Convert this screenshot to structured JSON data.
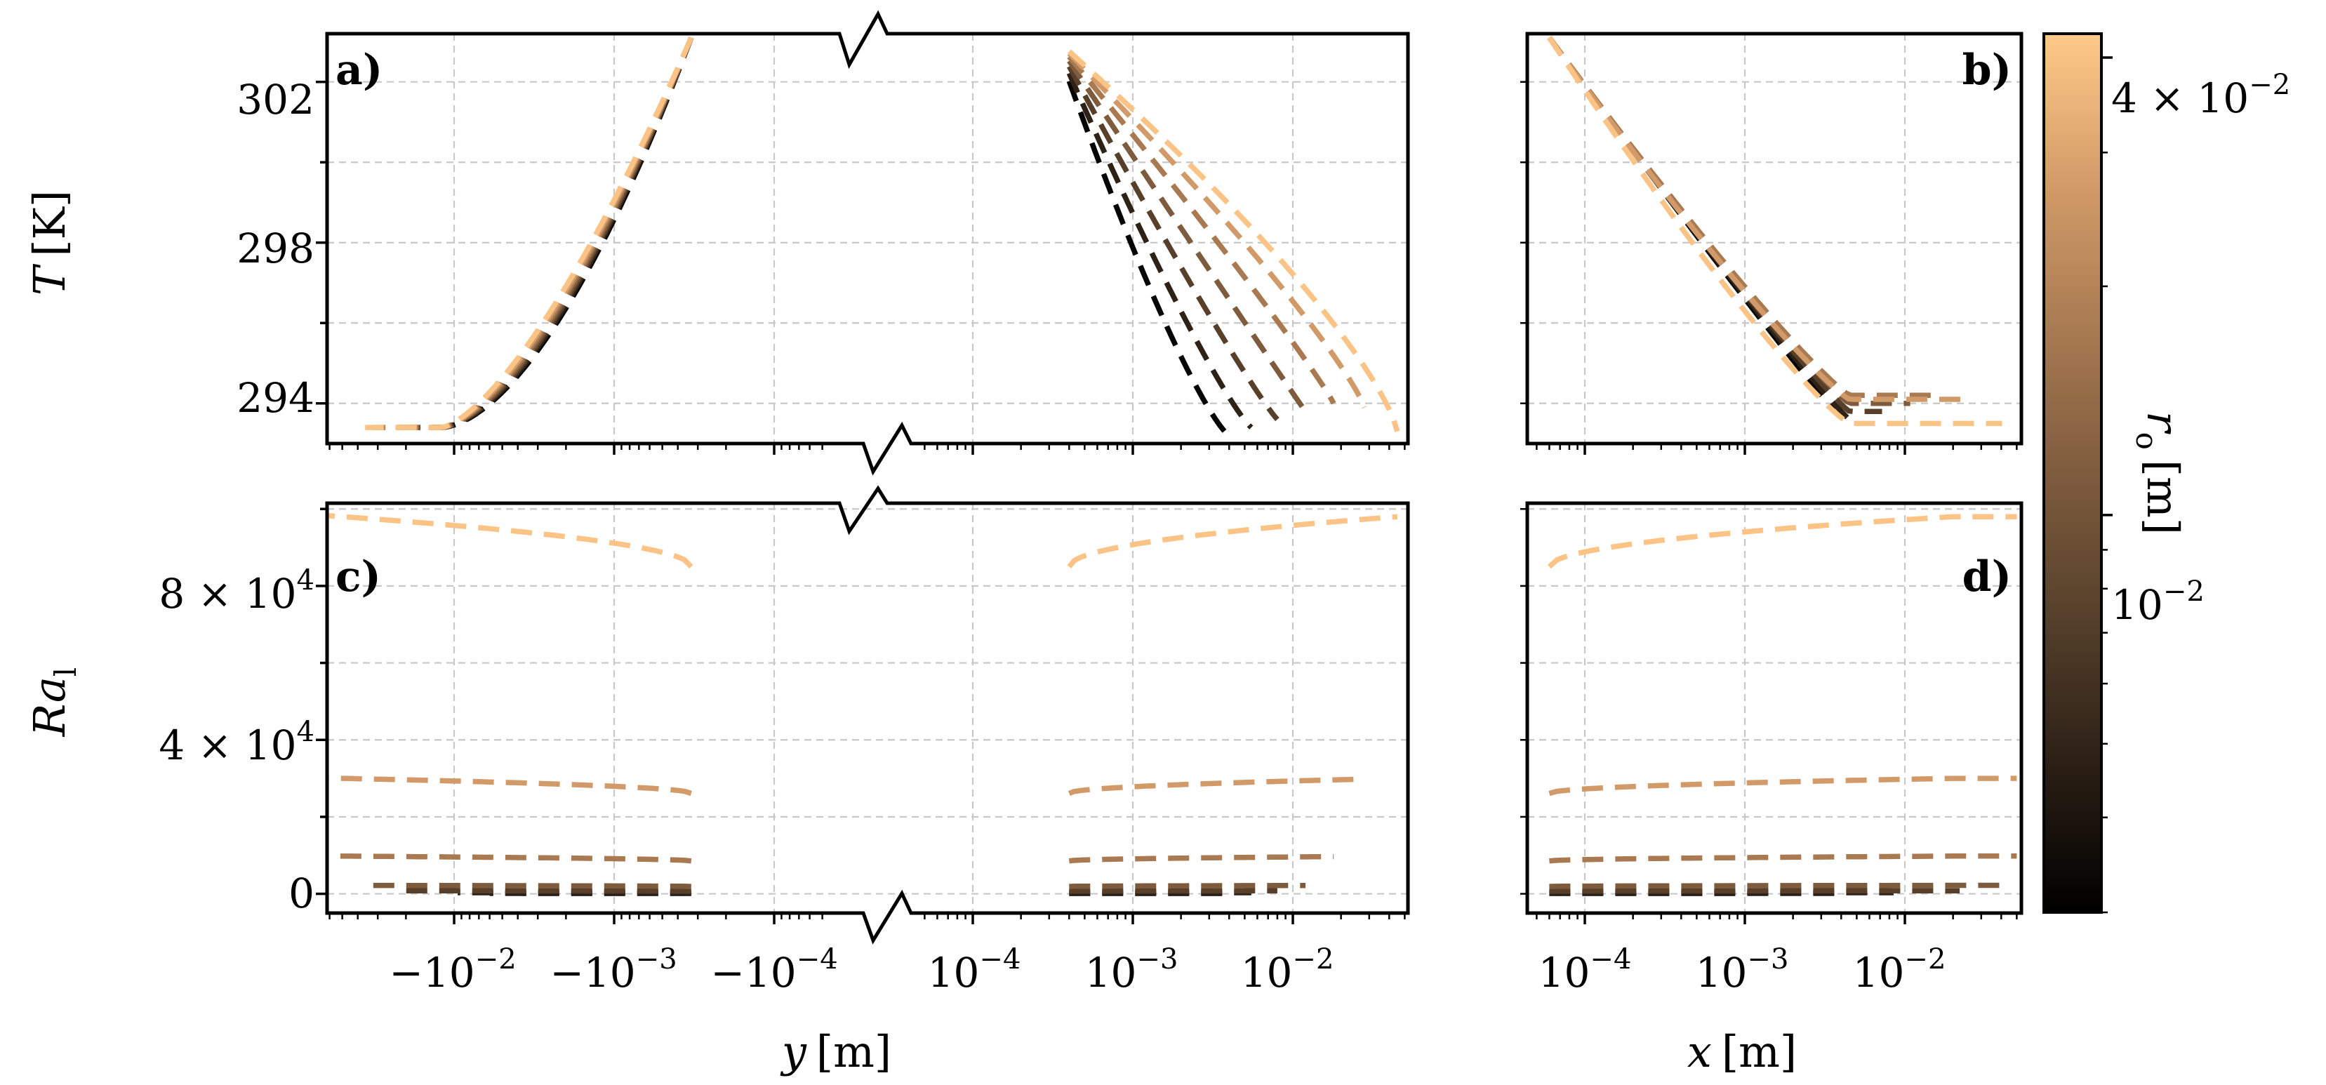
{
  "chart_data": [
    {
      "panel": "a)",
      "type": "line",
      "ylabel": "T [K]",
      "ylabel_sym": "T",
      "ylabel_unit": "[K]",
      "yticks": [
        "294",
        "298",
        "302"
      ],
      "yrange": [
        293.0,
        303.2
      ],
      "xscale": "symlog (broken axis)",
      "note": "Temperature profiles across y for varying outer radius r_o"
    },
    {
      "panel": "b)",
      "type": "line",
      "xscale": "log",
      "note": "Temperature profiles along x for varying outer radius r_o"
    },
    {
      "panel": "c)",
      "type": "line",
      "ylabel": "Ra_l",
      "ylabel_sym": "Ra",
      "ylabel_sub": "l",
      "yticks": [
        {
          "m": "0",
          "e": ""
        },
        {
          "m": "4 × 10",
          "e": "4"
        },
        {
          "m": "8 × 10",
          "e": "4"
        }
      ],
      "yrange": [
        -5000,
        101500
      ],
      "xlabel": "y [m]",
      "xlabel_sym": "y",
      "xlabel_unit": "[m]",
      "xticks_neg": [
        {
          "m": "−10",
          "e": "−2"
        },
        {
          "m": "−10",
          "e": "−3"
        },
        {
          "m": "−10",
          "e": "−4"
        }
      ],
      "xticks_pos": [
        {
          "m": "10",
          "e": "−4"
        },
        {
          "m": "10",
          "e": "−3"
        },
        {
          "m": "10",
          "e": "−2"
        }
      ],
      "note": "Local Rayleigh number along y for varying r_o"
    },
    {
      "panel": "d)",
      "type": "line",
      "xlabel": "x [m]",
      "xlabel_sym": "x",
      "xlabel_unit": "[m]",
      "xticks": [
        {
          "m": "10",
          "e": "−4"
        },
        {
          "m": "10",
          "e": "−3"
        },
        {
          "m": "10",
          "e": "−2"
        }
      ],
      "note": "Local Rayleigh number along x for varying r_o"
    }
  ],
  "series": [
    {
      "name": "r_o = 3.0e-3",
      "color": "#050505",
      "extent_m": 0.004,
      "T_tail": 293.2,
      "Ra": 120
    },
    {
      "name": "r_o = 4.0e-3",
      "color": "#2e2116",
      "extent_m": 0.0055,
      "T_tail": 293.4,
      "Ra": 300
    },
    {
      "name": "r_o = 5.5e-3",
      "color": "#573f2a",
      "extent_m": 0.008,
      "T_tail": 293.6,
      "Ra": 800
    },
    {
      "name": "r_o = 8.0e-3",
      "color": "#7e5b3d",
      "extent_m": 0.012,
      "T_tail": 293.8,
      "Ra": 2200
    },
    {
      "name": "r_o = 1.2e-2",
      "color": "#a97a51",
      "extent_m": 0.018,
      "T_tail": 294.0,
      "Ra": 9800
    },
    {
      "name": "r_o = 2.2e-2",
      "color": "#d29a69",
      "extent_m": 0.028,
      "T_tail": 293.9,
      "Ra": 30000
    },
    {
      "name": "r_o = 4.3e-2",
      "color": "#fbc486",
      "extent_m": 0.045,
      "T_tail": 293.3,
      "Ra": 98000
    }
  ],
  "colorbar": {
    "label": "r_o [m]",
    "label_sym": "r",
    "label_sub": "o",
    "label_unit": "[m]",
    "scale": "log",
    "range": [
      0.003,
      0.043
    ],
    "ticks": [
      {
        "m": "10",
        "e": "−2"
      },
      {
        "m": "4 × 10",
        "e": "−2"
      }
    ],
    "colors": [
      "#000000",
      "#2b1f15",
      "#55402b",
      "#7f5c3e",
      "#a97b52",
      "#d39c69",
      "#ffc989"
    ]
  }
}
